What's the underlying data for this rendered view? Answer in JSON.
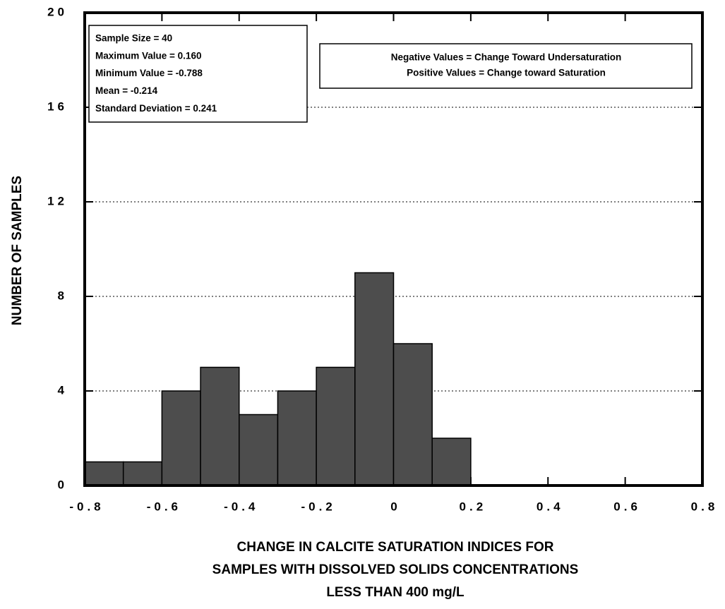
{
  "chart_data": {
    "type": "histogram",
    "bins": [
      -0.8,
      -0.7,
      -0.6,
      -0.5,
      -0.4,
      -0.3,
      -0.2,
      -0.1,
      0,
      0.1,
      0.2
    ],
    "counts": [
      1,
      1,
      4,
      5,
      3,
      4,
      5,
      9,
      6,
      2
    ],
    "color": "#4d4d4d",
    "xlim": [
      -0.8,
      0.8
    ],
    "xticks": [
      -0.8,
      -0.6,
      -0.4,
      -0.2,
      0,
      0.2,
      0.4,
      0.6,
      0.8
    ],
    "ylim": [
      0,
      20
    ],
    "yticks": [
      0,
      4,
      8,
      12,
      16,
      20
    ],
    "grid": true,
    "ylabel": "NUMBER OF SAMPLES",
    "xlabel": [
      "CHANGE IN CALCITE SATURATION INDICES FOR",
      "SAMPLES WITH DISSOLVED SOLIDS CONCENTRATIONS",
      "LESS THAN 400 mg/L"
    ],
    "stats_box": [
      "Sample Size = 40",
      "Maximum Value = 0.160",
      "Minimum Value = -0.788",
      "Mean = -0.214",
      "Standard Deviation = 0.241"
    ],
    "legend_box": [
      "Negative Values = Change Toward Undersaturation",
      "Positive Values = Change toward Saturation"
    ]
  }
}
